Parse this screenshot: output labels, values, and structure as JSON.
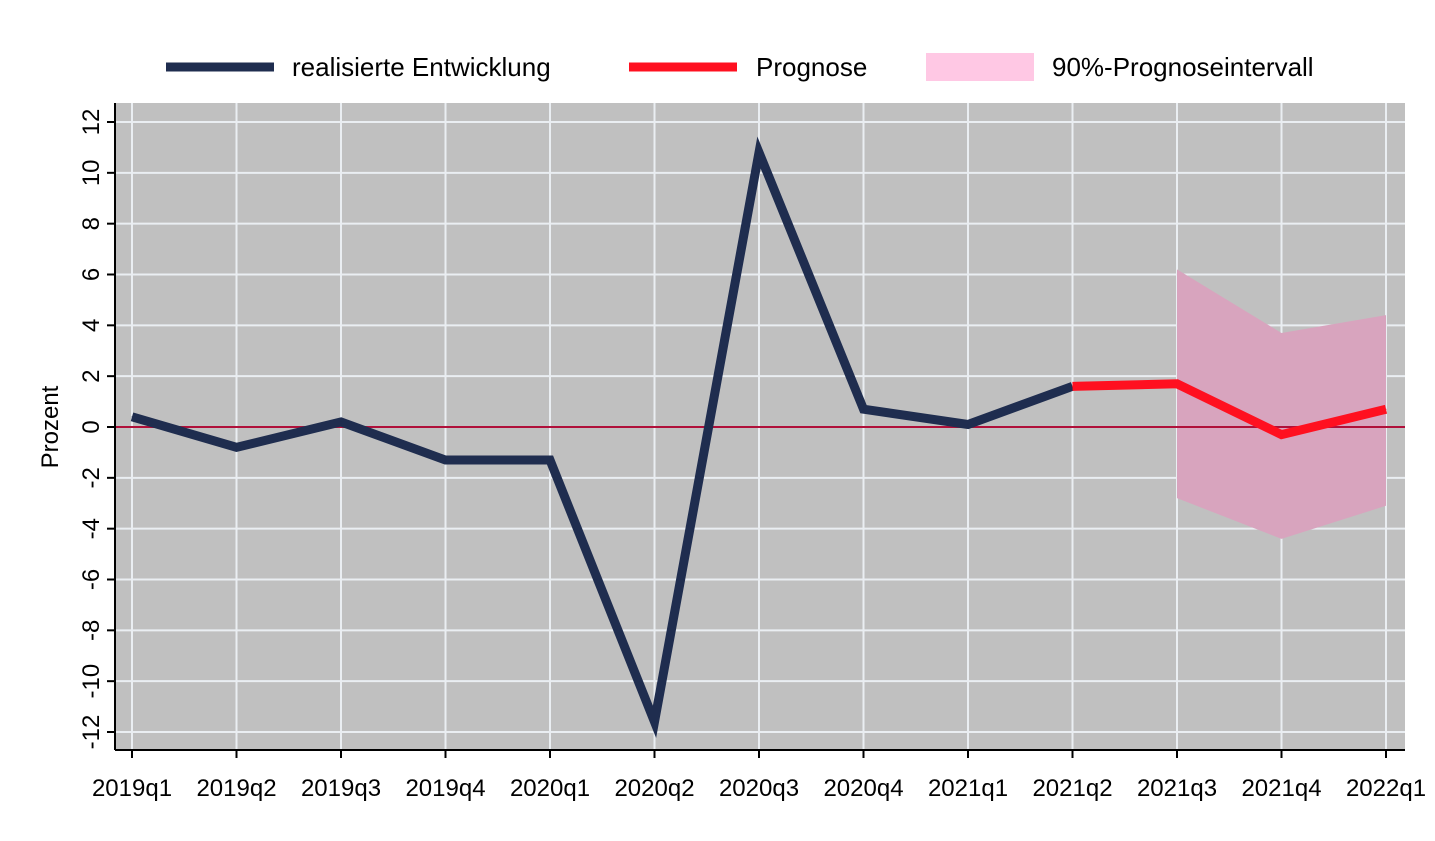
{
  "chart_data": {
    "type": "line",
    "title": "",
    "xlabel": "",
    "ylabel": "Prozent",
    "ylim": [
      -12,
      12
    ],
    "yticks": [
      -12,
      -10,
      -8,
      -6,
      -4,
      -2,
      0,
      2,
      4,
      6,
      8,
      10,
      12
    ],
    "categories": [
      "2019q1",
      "2019q2",
      "2019q3",
      "2019q4",
      "2020q1",
      "2020q2",
      "2020q3",
      "2020q4",
      "2021q1",
      "2021q2",
      "2021q3",
      "2021q4",
      "2022q1"
    ],
    "grid": true,
    "zero_line": true,
    "legend_position": "top",
    "series": [
      {
        "name": "realisierte Entwicklung",
        "style": "line",
        "color": "#1f2d4f",
        "x": [
          "2019q1",
          "2019q2",
          "2019q3",
          "2019q4",
          "2020q1",
          "2020q2",
          "2020q3",
          "2020q4",
          "2021q1",
          "2021q2"
        ],
        "values": [
          0.4,
          -0.8,
          0.2,
          -1.3,
          -1.3,
          -11.6,
          10.8,
          0.7,
          0.1,
          1.6
        ]
      },
      {
        "name": "Prognose",
        "style": "line",
        "color": "#ff1020",
        "x": [
          "2021q2",
          "2021q3",
          "2021q4",
          "2022q1"
        ],
        "values": [
          1.6,
          1.7,
          -0.3,
          0.7
        ]
      },
      {
        "name": "90%-Prognoseintervall",
        "style": "band",
        "color": "#ffc8e4",
        "x": [
          "2021q3",
          "2021q4",
          "2022q1"
        ],
        "lower": [
          -2.8,
          -4.4,
          -3.1
        ],
        "upper": [
          6.2,
          3.7,
          4.4
        ]
      }
    ]
  },
  "colors": {
    "plot_background": "#c0c0c0",
    "grid": "#eaeef2",
    "zero_line": "#b0103a",
    "band_on_plot": "#d8a4be"
  }
}
